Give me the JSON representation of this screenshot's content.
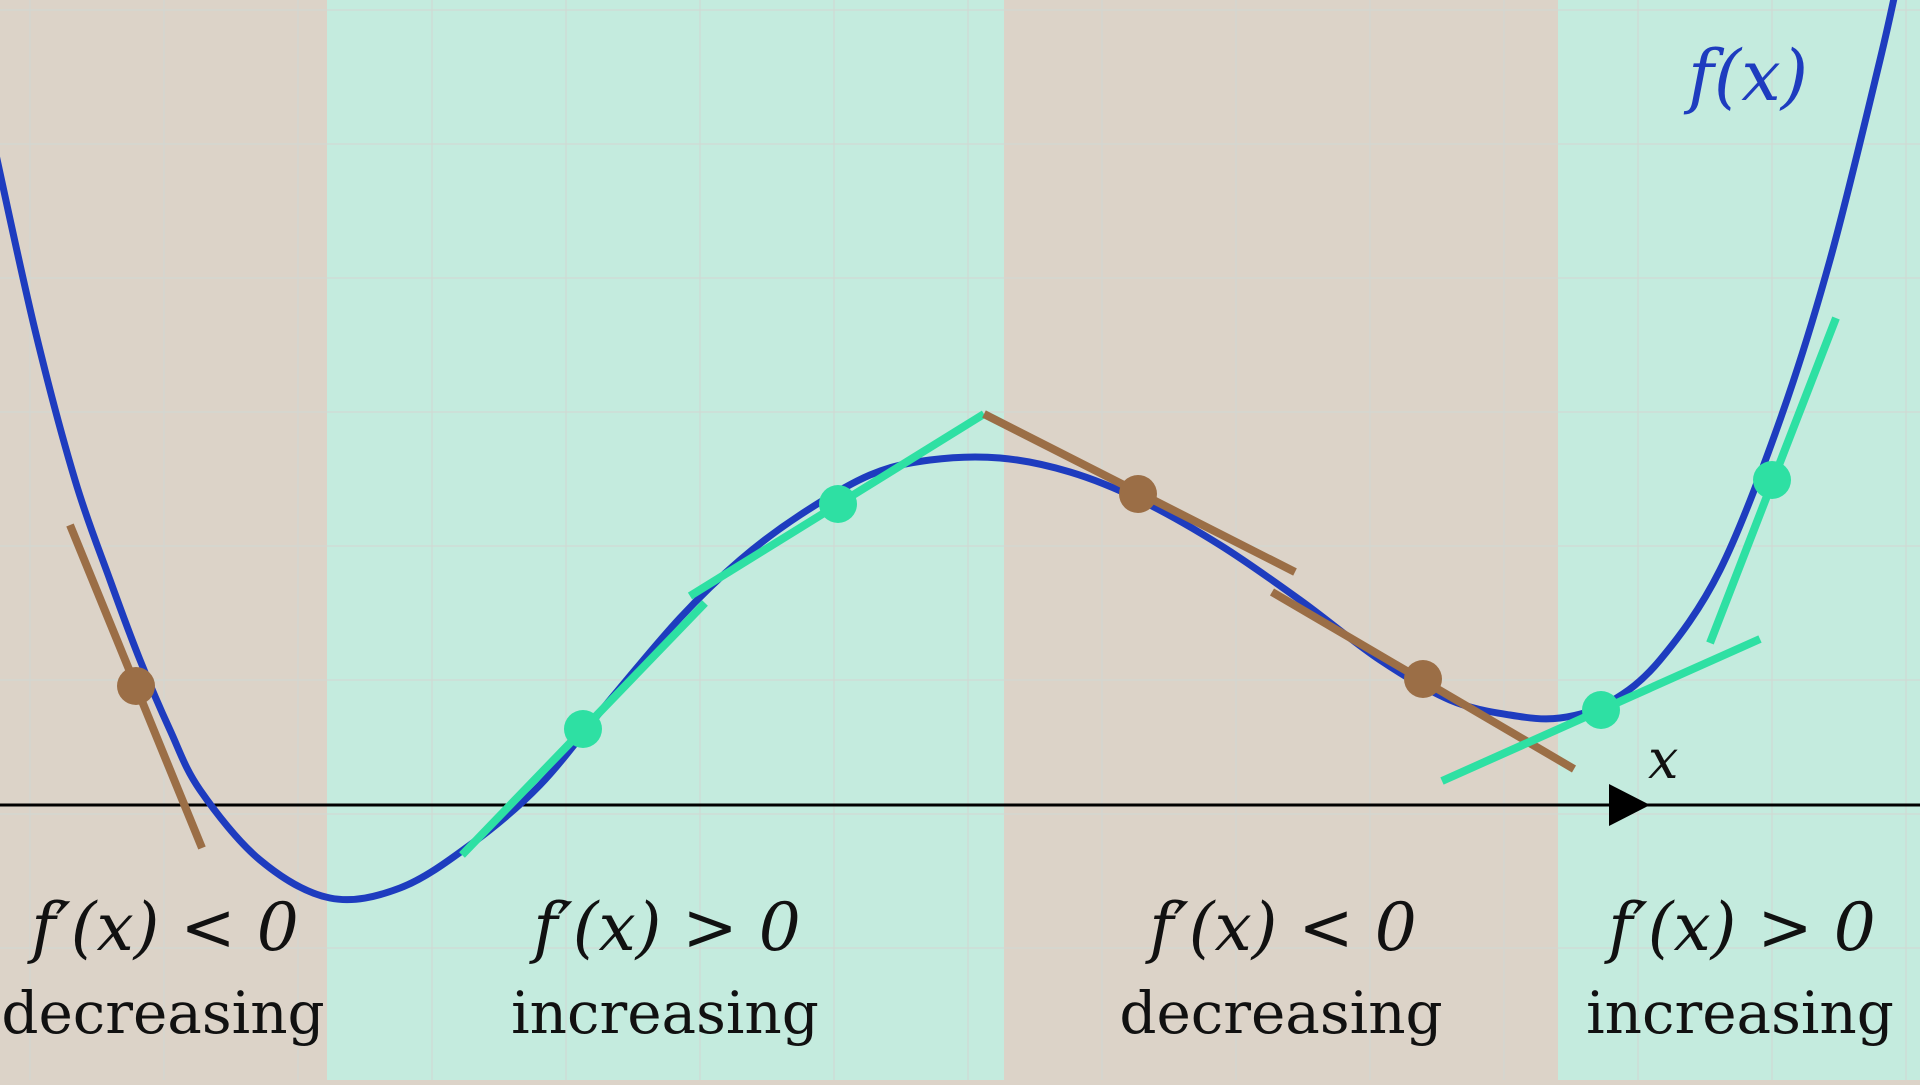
{
  "curve_label": "f(x)",
  "axis_label": "x",
  "regions": [
    {
      "sign": "f′(x) < 0",
      "word": "decreasing",
      "kind": "decreasing"
    },
    {
      "sign": "f′(x) > 0",
      "word": "increasing",
      "kind": "increasing"
    },
    {
      "sign": "f′(x) < 0",
      "word": "decreasing",
      "kind": "decreasing"
    },
    {
      "sign": "f′(x) > 0",
      "word": "increasing",
      "kind": "increasing"
    }
  ],
  "colors": {
    "decreasing_band": "#dcd3c8",
    "increasing_band": "#c4ebde",
    "curve": "#1e3cbf",
    "decreasing_tangent": "#9b6e46",
    "increasing_tangent": "#2ee0a3",
    "axis": "#000000",
    "grid": "#d5ddd8"
  }
}
